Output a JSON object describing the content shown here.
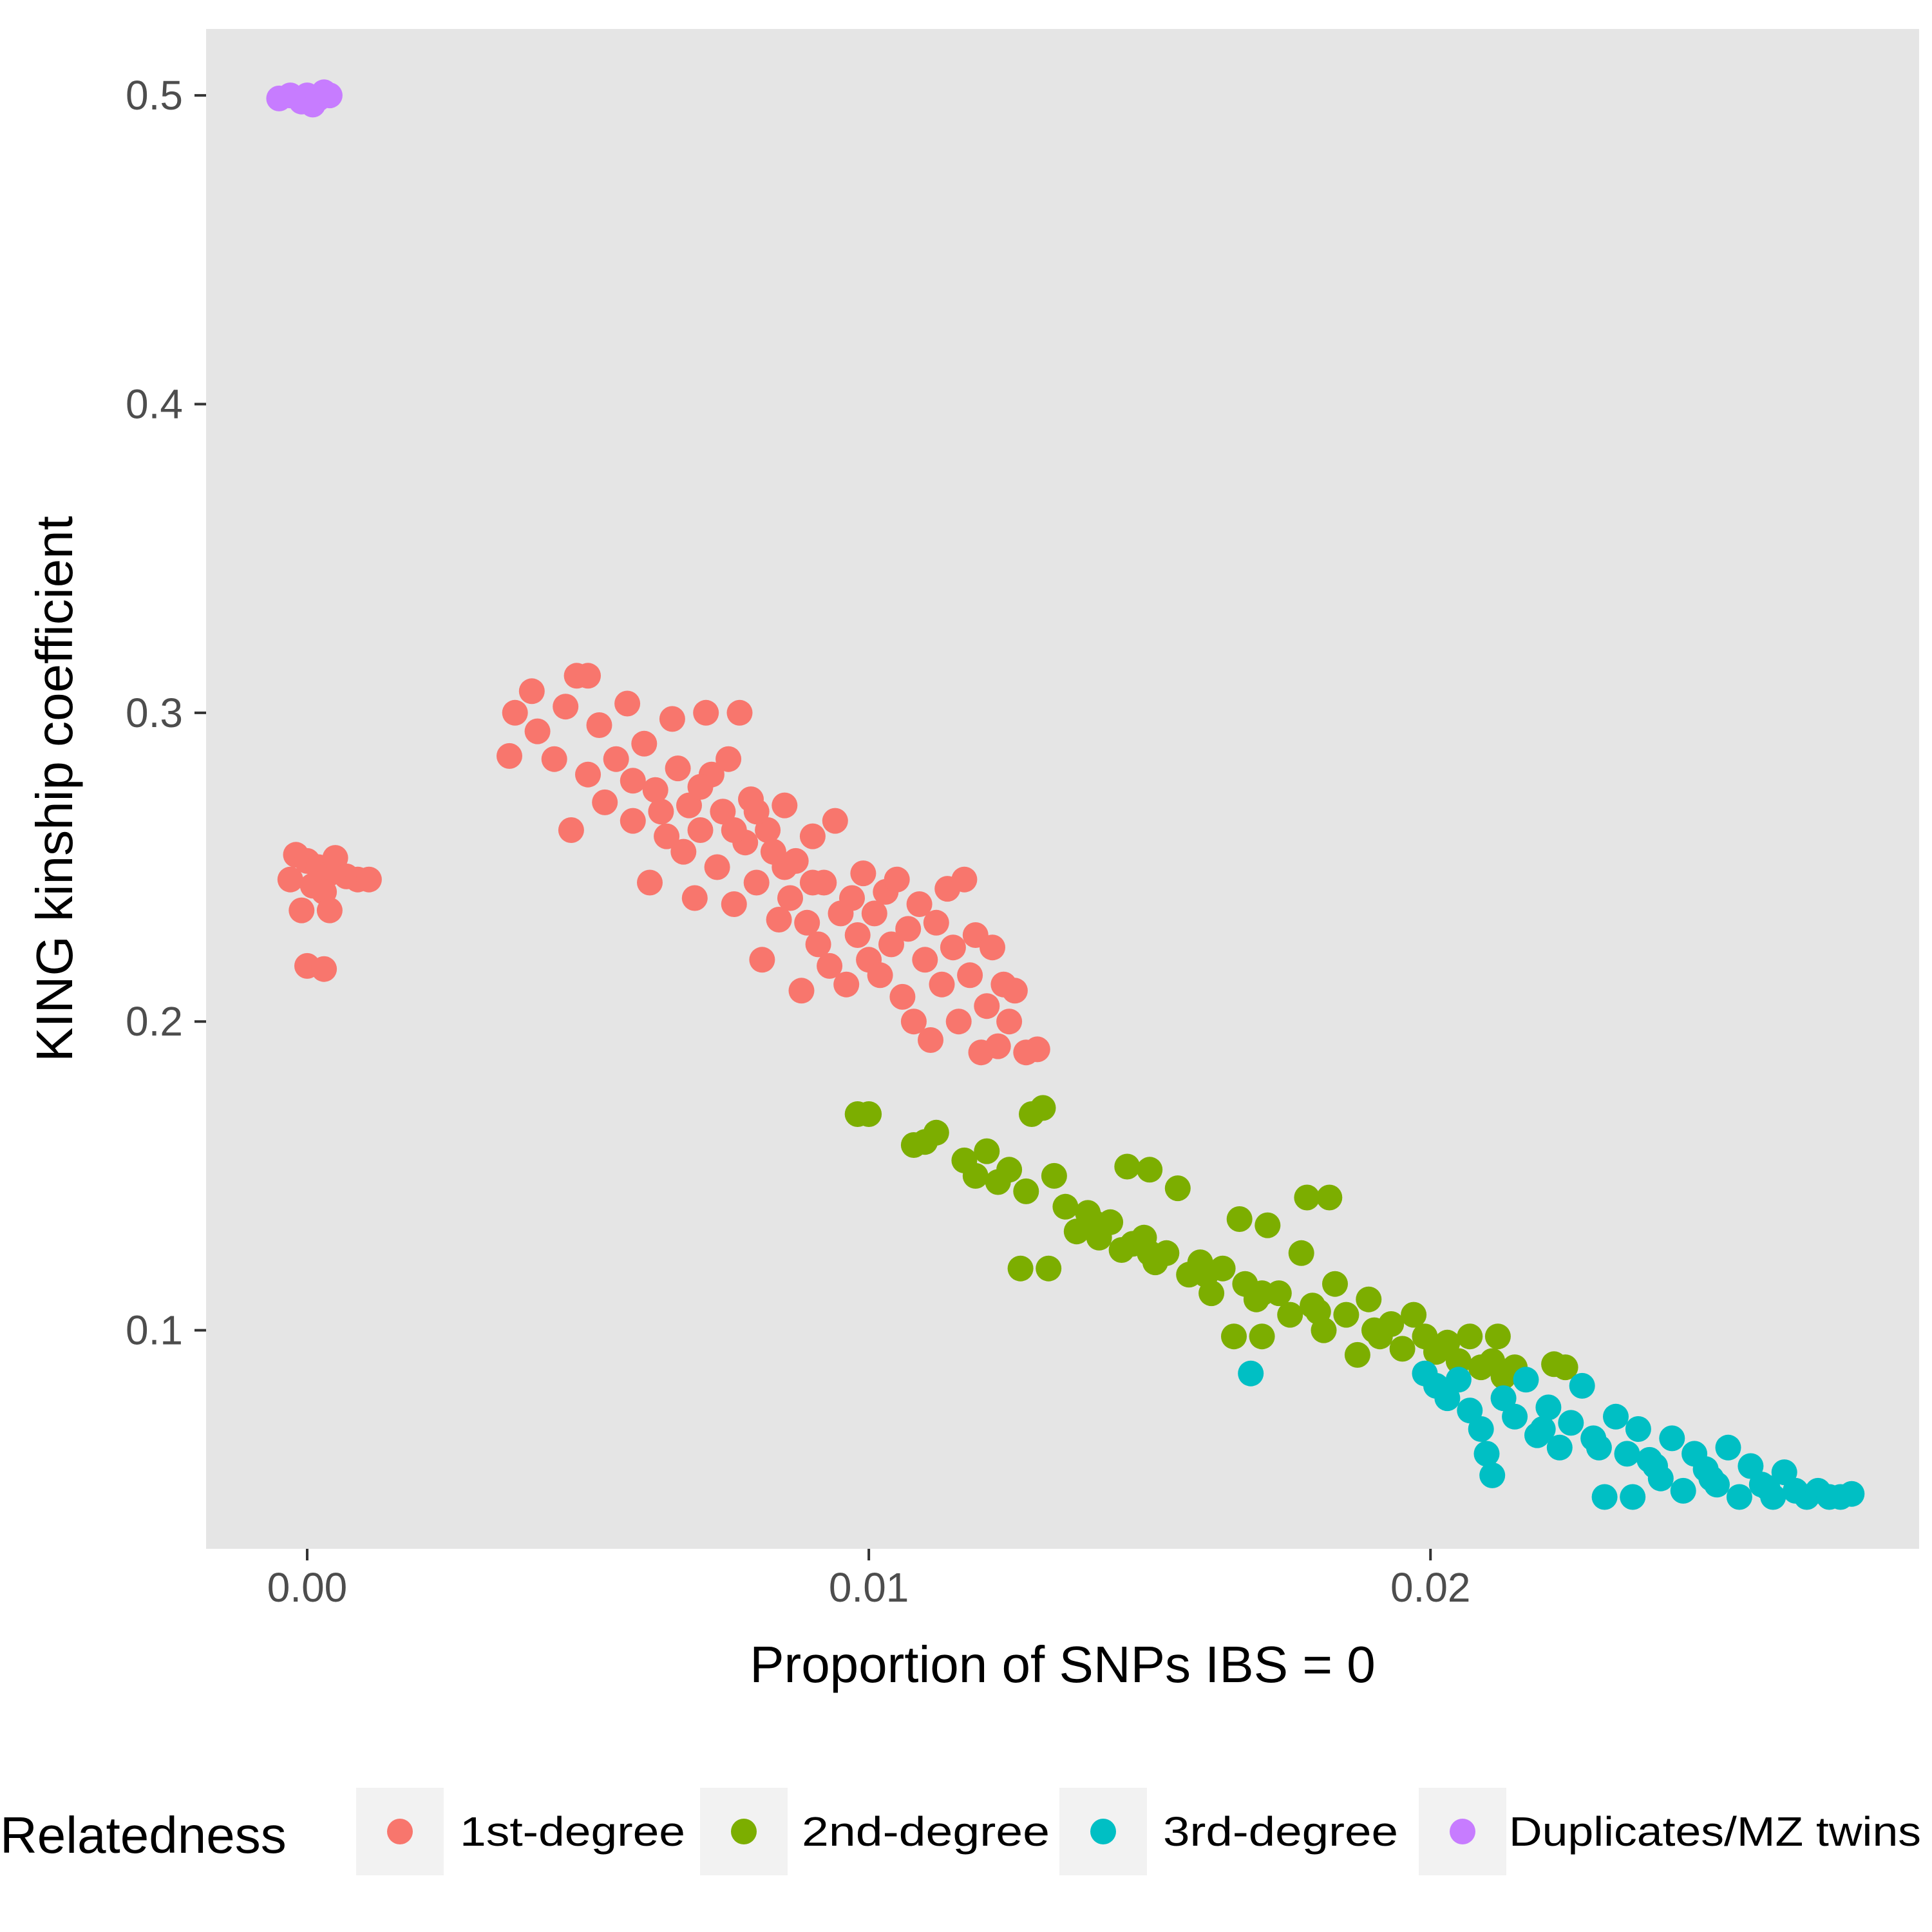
{
  "chart_data": {
    "type": "scatter",
    "title": "",
    "xlabel": "Proportion of SNPs IBS = 0",
    "ylabel": "KING kinship coefficient",
    "xlim": [
      -0.0018,
      0.0287
    ],
    "ylim": [
      0.0292,
      0.5215
    ],
    "x_ticks": [
      0.0,
      0.01,
      0.02
    ],
    "x_tick_labels": [
      "0.00",
      "0.01",
      "0.02"
    ],
    "y_ticks": [
      0.1,
      0.2,
      0.3,
      0.4,
      0.5
    ],
    "y_tick_labels": [
      "0.1",
      "0.2",
      "0.3",
      "0.4",
      "0.5"
    ],
    "grid": false,
    "panel_background": "#e5e5e5",
    "legend": {
      "title": "Relatedness",
      "placement": "bottom"
    },
    "series": [
      {
        "name": "1st-degree",
        "color": "#f8766d",
        "points": [
          [
            -0.0002,
            0.254
          ],
          [
            0.0,
            0.252
          ],
          [
            0.0002,
            0.25
          ],
          [
            0.0004,
            0.248
          ],
          [
            -0.0003,
            0.246
          ],
          [
            0.0001,
            0.244
          ],
          [
            0.0003,
            0.242
          ],
          [
            0.0005,
            0.253
          ],
          [
            0.0007,
            0.247
          ],
          [
            0.0009,
            0.246
          ],
          [
            0.0011,
            0.246
          ],
          [
            -0.0001,
            0.236
          ],
          [
            0.0004,
            0.236
          ],
          [
            0.0,
            0.218
          ],
          [
            0.0003,
            0.217
          ],
          [
            0.0036,
            0.286
          ],
          [
            0.0037,
            0.3
          ],
          [
            0.004,
            0.307
          ],
          [
            0.0041,
            0.294
          ],
          [
            0.0044,
            0.285
          ],
          [
            0.0046,
            0.302
          ],
          [
            0.0048,
            0.312
          ],
          [
            0.005,
            0.312
          ],
          [
            0.0047,
            0.262
          ],
          [
            0.005,
            0.28
          ],
          [
            0.0052,
            0.296
          ],
          [
            0.0053,
            0.271
          ],
          [
            0.0055,
            0.285
          ],
          [
            0.0057,
            0.303
          ],
          [
            0.0058,
            0.265
          ],
          [
            0.006,
            0.29
          ],
          [
            0.0061,
            0.245
          ],
          [
            0.0062,
            0.275
          ],
          [
            0.0064,
            0.26
          ],
          [
            0.0065,
            0.298
          ],
          [
            0.0066,
            0.282
          ],
          [
            0.0067,
            0.255
          ],
          [
            0.0068,
            0.27
          ],
          [
            0.0069,
            0.24
          ],
          [
            0.007,
            0.262
          ],
          [
            0.0071,
            0.3
          ],
          [
            0.0072,
            0.28
          ],
          [
            0.0073,
            0.25
          ],
          [
            0.0074,
            0.268
          ],
          [
            0.0075,
            0.285
          ],
          [
            0.0076,
            0.238
          ],
          [
            0.0077,
            0.3
          ],
          [
            0.0078,
            0.258
          ],
          [
            0.0079,
            0.272
          ],
          [
            0.008,
            0.245
          ],
          [
            0.0081,
            0.22
          ],
          [
            0.0082,
            0.262
          ],
          [
            0.0083,
            0.255
          ],
          [
            0.0084,
            0.233
          ],
          [
            0.0085,
            0.27
          ],
          [
            0.0086,
            0.24
          ],
          [
            0.0087,
            0.252
          ],
          [
            0.0088,
            0.21
          ],
          [
            0.0089,
            0.232
          ],
          [
            0.009,
            0.26
          ],
          [
            0.0091,
            0.225
          ],
          [
            0.0092,
            0.245
          ],
          [
            0.0093,
            0.218
          ],
          [
            0.0094,
            0.265
          ],
          [
            0.0095,
            0.235
          ],
          [
            0.0096,
            0.212
          ],
          [
            0.0097,
            0.24
          ],
          [
            0.0098,
            0.228
          ],
          [
            0.0099,
            0.248
          ],
          [
            0.01,
            0.22
          ],
          [
            0.0101,
            0.235
          ],
          [
            0.0102,
            0.215
          ],
          [
            0.0103,
            0.242
          ],
          [
            0.0104,
            0.225
          ],
          [
            0.0105,
            0.246
          ],
          [
            0.0106,
            0.208
          ],
          [
            0.0107,
            0.23
          ],
          [
            0.0108,
            0.2
          ],
          [
            0.0109,
            0.238
          ],
          [
            0.011,
            0.22
          ],
          [
            0.0111,
            0.194
          ],
          [
            0.0112,
            0.232
          ],
          [
            0.0113,
            0.212
          ],
          [
            0.0114,
            0.243
          ],
          [
            0.0115,
            0.224
          ],
          [
            0.0116,
            0.2
          ],
          [
            0.0117,
            0.246
          ],
          [
            0.0118,
            0.215
          ],
          [
            0.0119,
            0.228
          ],
          [
            0.012,
            0.19
          ],
          [
            0.0121,
            0.205
          ],
          [
            0.0122,
            0.224
          ],
          [
            0.0123,
            0.192
          ],
          [
            0.0124,
            0.212
          ],
          [
            0.0125,
            0.2
          ],
          [
            0.0126,
            0.21
          ],
          [
            0.0128,
            0.19
          ],
          [
            0.013,
            0.191
          ],
          [
            0.0058,
            0.278
          ],
          [
            0.0063,
            0.268
          ],
          [
            0.007,
            0.276
          ],
          [
            0.0076,
            0.262
          ],
          [
            0.008,
            0.268
          ],
          [
            0.0085,
            0.25
          ],
          [
            0.009,
            0.245
          ]
        ]
      },
      {
        "name": "2nd-degree",
        "color": "#7cae00",
        "points": [
          [
            0.0098,
            0.17
          ],
          [
            0.01,
            0.17
          ],
          [
            0.0108,
            0.16
          ],
          [
            0.011,
            0.161
          ],
          [
            0.0112,
            0.164
          ],
          [
            0.0117,
            0.155
          ],
          [
            0.0119,
            0.15
          ],
          [
            0.0121,
            0.158
          ],
          [
            0.0123,
            0.148
          ],
          [
            0.0125,
            0.152
          ],
          [
            0.0127,
            0.12
          ],
          [
            0.0128,
            0.145
          ],
          [
            0.0129,
            0.17
          ],
          [
            0.0131,
            0.172
          ],
          [
            0.0132,
            0.12
          ],
          [
            0.0133,
            0.15
          ],
          [
            0.0135,
            0.14
          ],
          [
            0.0137,
            0.132
          ],
          [
            0.0139,
            0.138
          ],
          [
            0.0141,
            0.13
          ],
          [
            0.0143,
            0.135
          ],
          [
            0.0145,
            0.126
          ],
          [
            0.0146,
            0.153
          ],
          [
            0.0147,
            0.128
          ],
          [
            0.0149,
            0.13
          ],
          [
            0.015,
            0.152
          ],
          [
            0.0151,
            0.122
          ],
          [
            0.0153,
            0.125
          ],
          [
            0.0155,
            0.146
          ],
          [
            0.0157,
            0.118
          ],
          [
            0.0159,
            0.122
          ],
          [
            0.0161,
            0.112
          ],
          [
            0.0163,
            0.12
          ],
          [
            0.0165,
            0.098
          ],
          [
            0.0166,
            0.136
          ],
          [
            0.0167,
            0.115
          ],
          [
            0.0169,
            0.11
          ],
          [
            0.017,
            0.098
          ],
          [
            0.0171,
            0.134
          ],
          [
            0.0173,
            0.112
          ],
          [
            0.0175,
            0.105
          ],
          [
            0.0177,
            0.125
          ],
          [
            0.0178,
            0.143
          ],
          [
            0.0179,
            0.108
          ],
          [
            0.0181,
            0.1
          ],
          [
            0.0182,
            0.143
          ],
          [
            0.0183,
            0.115
          ],
          [
            0.0185,
            0.105
          ],
          [
            0.0187,
            0.092
          ],
          [
            0.0189,
            0.11
          ],
          [
            0.0191,
            0.098
          ],
          [
            0.0193,
            0.102
          ],
          [
            0.0195,
            0.094
          ],
          [
            0.0197,
            0.105
          ],
          [
            0.0199,
            0.098
          ],
          [
            0.0201,
            0.093
          ],
          [
            0.0203,
            0.096
          ],
          [
            0.0205,
            0.09
          ],
          [
            0.0207,
            0.098
          ],
          [
            0.0209,
            0.088
          ],
          [
            0.0211,
            0.09
          ],
          [
            0.0212,
            0.098
          ],
          [
            0.0213,
            0.085
          ],
          [
            0.0215,
            0.088
          ],
          [
            0.0222,
            0.089
          ],
          [
            0.0224,
            0.088
          ],
          [
            0.014,
            0.135
          ],
          [
            0.015,
            0.125
          ],
          [
            0.016,
            0.118
          ],
          [
            0.017,
            0.112
          ],
          [
            0.018,
            0.106
          ],
          [
            0.019,
            0.1
          ]
        ]
      },
      {
        "name": "3rd-degree",
        "color": "#00bfc4",
        "points": [
          [
            0.0168,
            0.086
          ],
          [
            0.0199,
            0.086
          ],
          [
            0.0201,
            0.082
          ],
          [
            0.0203,
            0.078
          ],
          [
            0.0205,
            0.084
          ],
          [
            0.0207,
            0.074
          ],
          [
            0.0209,
            0.068
          ],
          [
            0.021,
            0.06
          ],
          [
            0.0211,
            0.053
          ],
          [
            0.0213,
            0.078
          ],
          [
            0.0215,
            0.072
          ],
          [
            0.0217,
            0.084
          ],
          [
            0.0219,
            0.066
          ],
          [
            0.0221,
            0.075
          ],
          [
            0.0223,
            0.062
          ],
          [
            0.0225,
            0.07
          ],
          [
            0.0227,
            0.082
          ],
          [
            0.0229,
            0.065
          ],
          [
            0.0231,
            0.046
          ],
          [
            0.0233,
            0.072
          ],
          [
            0.0235,
            0.06
          ],
          [
            0.0236,
            0.046
          ],
          [
            0.0237,
            0.068
          ],
          [
            0.0239,
            0.058
          ],
          [
            0.0241,
            0.052
          ],
          [
            0.0243,
            0.065
          ],
          [
            0.0245,
            0.048
          ],
          [
            0.0247,
            0.06
          ],
          [
            0.0249,
            0.055
          ],
          [
            0.0251,
            0.05
          ],
          [
            0.0253,
            0.062
          ],
          [
            0.0255,
            0.046
          ],
          [
            0.0257,
            0.056
          ],
          [
            0.0259,
            0.05
          ],
          [
            0.0261,
            0.046
          ],
          [
            0.0263,
            0.054
          ],
          [
            0.0265,
            0.048
          ],
          [
            0.0267,
            0.046
          ],
          [
            0.0269,
            0.048
          ],
          [
            0.0271,
            0.046
          ],
          [
            0.0273,
            0.046
          ],
          [
            0.0275,
            0.047
          ],
          [
            0.022,
            0.068
          ],
          [
            0.023,
            0.062
          ],
          [
            0.024,
            0.056
          ],
          [
            0.025,
            0.052
          ],
          [
            0.026,
            0.049
          ]
        ]
      },
      {
        "name": "Duplicates/MZ twins",
        "color": "#c77cff",
        "points": [
          [
            -0.0005,
            0.499
          ],
          [
            -0.0003,
            0.5
          ],
          [
            -0.0001,
            0.498
          ],
          [
            0.0,
            0.5
          ],
          [
            0.0001,
            0.497
          ],
          [
            0.0002,
            0.499
          ],
          [
            0.0003,
            0.501
          ],
          [
            0.0004,
            0.5
          ]
        ]
      }
    ]
  }
}
